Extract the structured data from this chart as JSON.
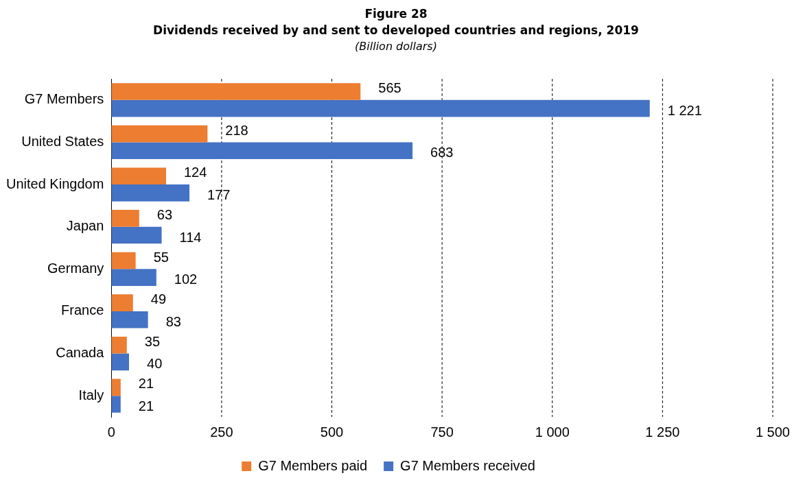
{
  "chart_data": {
    "type": "bar",
    "orientation": "horizontal",
    "title": "Figure 28",
    "subtitle": "Dividends received by and sent to developed countries and regions, 2019",
    "annotations": [
      "(Billion dollars)"
    ],
    "categories": [
      "G7 Members",
      "United States",
      "United Kingdom",
      "Japan",
      "Germany",
      "France",
      "Canada",
      "Italy"
    ],
    "series": [
      {
        "name": "G7 Members paid",
        "color": "#ed7d31",
        "values": [
          565,
          218,
          124,
          63,
          55,
          49,
          35,
          21
        ],
        "value_labels": [
          "565",
          "218",
          "124",
          "63",
          "55",
          "49",
          "35",
          "21"
        ]
      },
      {
        "name": "G7 Members received",
        "color": "#4472c4",
        "values": [
          1221,
          683,
          177,
          114,
          102,
          83,
          40,
          21
        ],
        "value_labels": [
          "1 221",
          "683",
          "177",
          "114",
          "102",
          "83",
          "40",
          "21"
        ]
      }
    ],
    "xlim": [
      0,
      1500
    ],
    "xticks": [
      0,
      250,
      500,
      750,
      {
        "value": 1000,
        "label": "1 000"
      },
      {
        "value": 1250,
        "label": "1 250"
      },
      {
        "value": 1500,
        "label": "1 500"
      }
    ],
    "grid": "x",
    "legend": "bottom"
  }
}
